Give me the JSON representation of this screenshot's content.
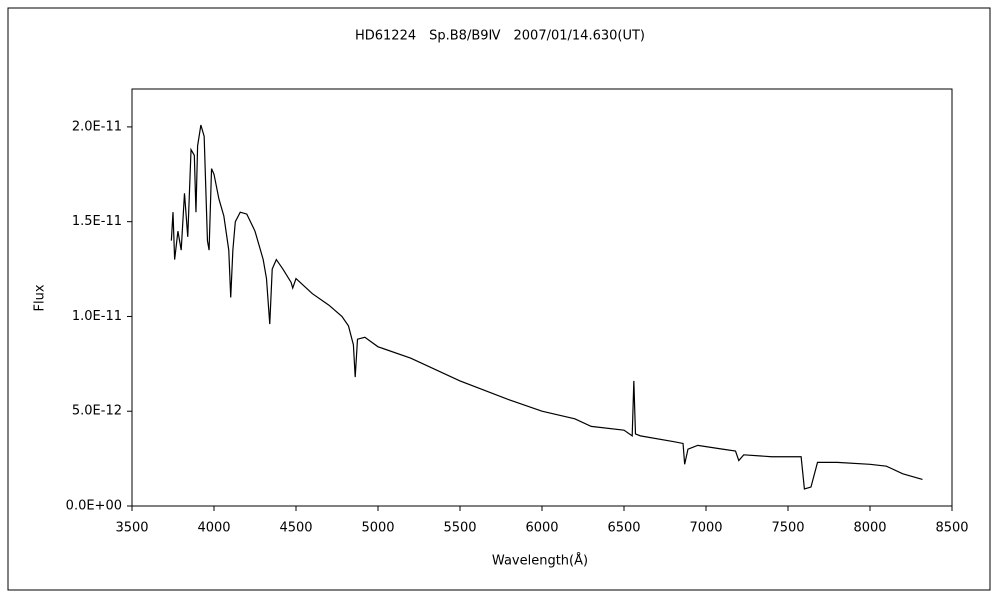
{
  "chart_data": {
    "type": "line",
    "title": "HD61224　Sp.B8/B9Ⅳ　2007/01/14.630(UT)",
    "x_label": "Wavelength(Å)",
    "y_label": "Flux",
    "xlim": [
      3500,
      8500
    ],
    "xticks": [
      3500,
      4000,
      4500,
      5000,
      5500,
      6000,
      6500,
      7000,
      7500,
      8000,
      8500
    ],
    "ylim": [
      0,
      2.2e-11
    ],
    "yticks": [
      {
        "value": 0,
        "label": "0.0E+00"
      },
      {
        "value": 5e-12,
        "label": "5.0E-12"
      },
      {
        "value": 1e-11,
        "label": "1.0E-11"
      },
      {
        "value": 1.5e-11,
        "label": "1.5E-11"
      },
      {
        "value": 2e-11,
        "label": "2.0E-11"
      }
    ],
    "grid": false,
    "x": [
      3740,
      3750,
      3760,
      3780,
      3800,
      3820,
      3840,
      3860,
      3880,
      3890,
      3900,
      3920,
      3940,
      3960,
      3970,
      3985,
      4000,
      4030,
      4060,
      4090,
      4102,
      4115,
      4130,
      4160,
      4200,
      4250,
      4300,
      4320,
      4340,
      4355,
      4380,
      4420,
      4470,
      4480,
      4500,
      4600,
      4700,
      4780,
      4820,
      4850,
      4861,
      4875,
      4920,
      5000,
      5200,
      5500,
      5800,
      6000,
      6200,
      6300,
      6500,
      6550,
      6560,
      6570,
      6600,
      6800,
      6860,
      6870,
      6890,
      6950,
      7100,
      7180,
      7200,
      7230,
      7400,
      7580,
      7600,
      7640,
      7680,
      7800,
      8000,
      8100,
      8200,
      8320
    ],
    "series": [
      {
        "name": "Flux",
        "color": "#000000",
        "values": [
          1.4e-11,
          1.55e-11,
          1.3e-11,
          1.45e-11,
          1.35e-11,
          1.65e-11,
          1.42e-11,
          1.88e-11,
          1.85e-11,
          1.55e-11,
          1.9e-11,
          2.01e-11,
          1.95e-11,
          1.4e-11,
          1.35e-11,
          1.78e-11,
          1.75e-11,
          1.62e-11,
          1.53e-11,
          1.35e-11,
          1.1e-11,
          1.35e-11,
          1.5e-11,
          1.55e-11,
          1.54e-11,
          1.45e-11,
          1.3e-11,
          1.2e-11,
          9.6e-12,
          1.25e-11,
          1.3e-11,
          1.25e-11,
          1.18e-11,
          1.15e-11,
          1.2e-11,
          1.12e-11,
          1.06e-11,
          1e-11,
          9.5e-12,
          8.5e-12,
          6.8e-12,
          8.8e-12,
          8.9e-12,
          8.4e-12,
          7.8e-12,
          6.6e-12,
          5.6e-12,
          5e-12,
          4.6e-12,
          4.2e-12,
          4e-12,
          3.7e-12,
          6.6e-12,
          3.8e-12,
          3.7e-12,
          3.4e-12,
          3.3e-12,
          2.2e-12,
          3e-12,
          3.2e-12,
          3e-12,
          2.9e-12,
          2.4e-12,
          2.7e-12,
          2.6e-12,
          2.6e-12,
          9e-13,
          1e-12,
          2.3e-12,
          2.3e-12,
          2.2e-12,
          2.1e-12,
          1.7e-12,
          1.4e-12
        ]
      }
    ]
  }
}
